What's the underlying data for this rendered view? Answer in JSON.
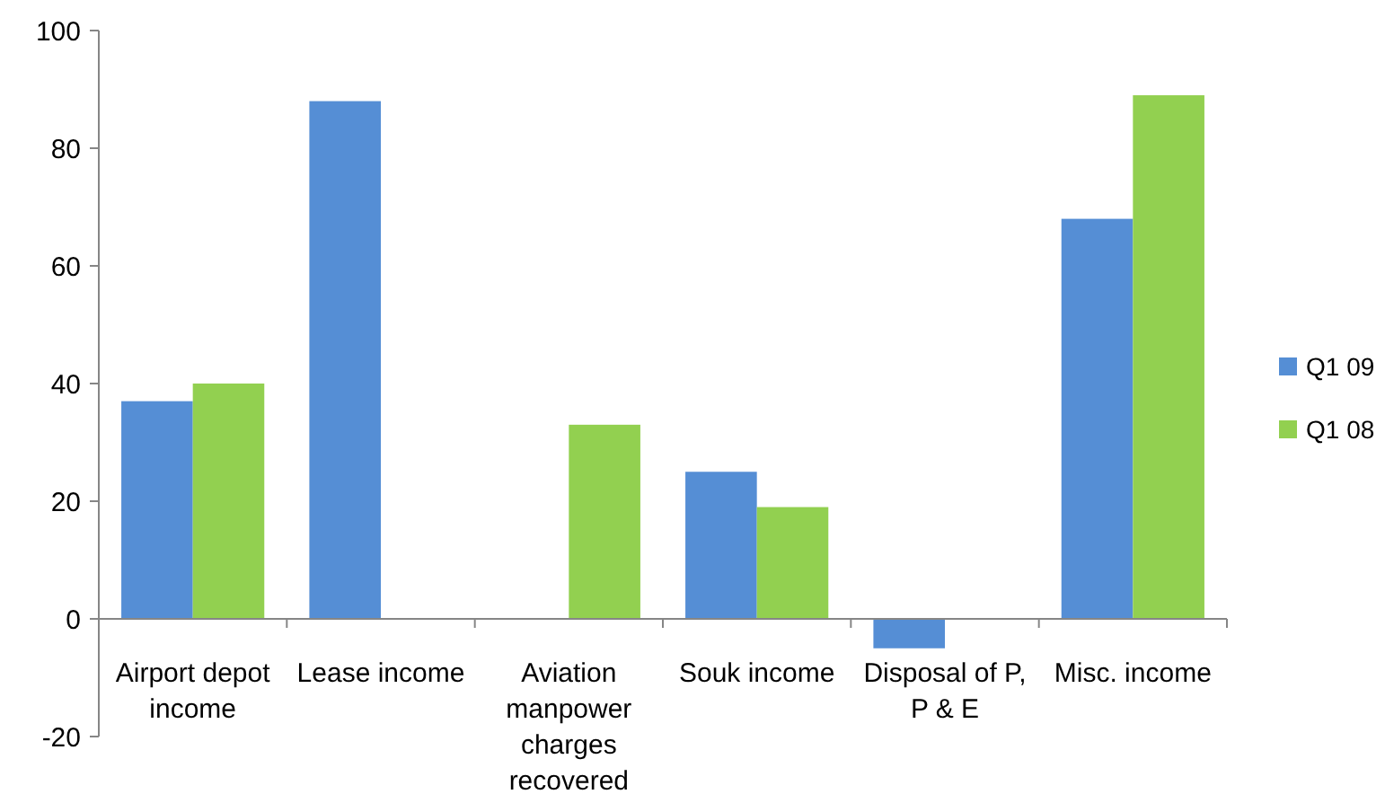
{
  "chart_data": {
    "type": "bar",
    "categories": [
      "Airport depot income",
      "Lease income",
      "Aviation manpower charges recovered",
      "Souk income",
      "Disposal of P, P & E",
      "Misc. income"
    ],
    "series": [
      {
        "name": "Q1 09",
        "color": "#558ed5",
        "values": [
          37,
          88,
          null,
          25,
          -5,
          68
        ]
      },
      {
        "name": "Q1 08",
        "color": "#92d050",
        "values": [
          40,
          null,
          33,
          19,
          null,
          89
        ]
      }
    ],
    "ylim": [
      -20,
      100
    ],
    "yticks": [
      -20,
      0,
      20,
      40,
      60,
      80,
      100
    ],
    "legend": "right"
  }
}
